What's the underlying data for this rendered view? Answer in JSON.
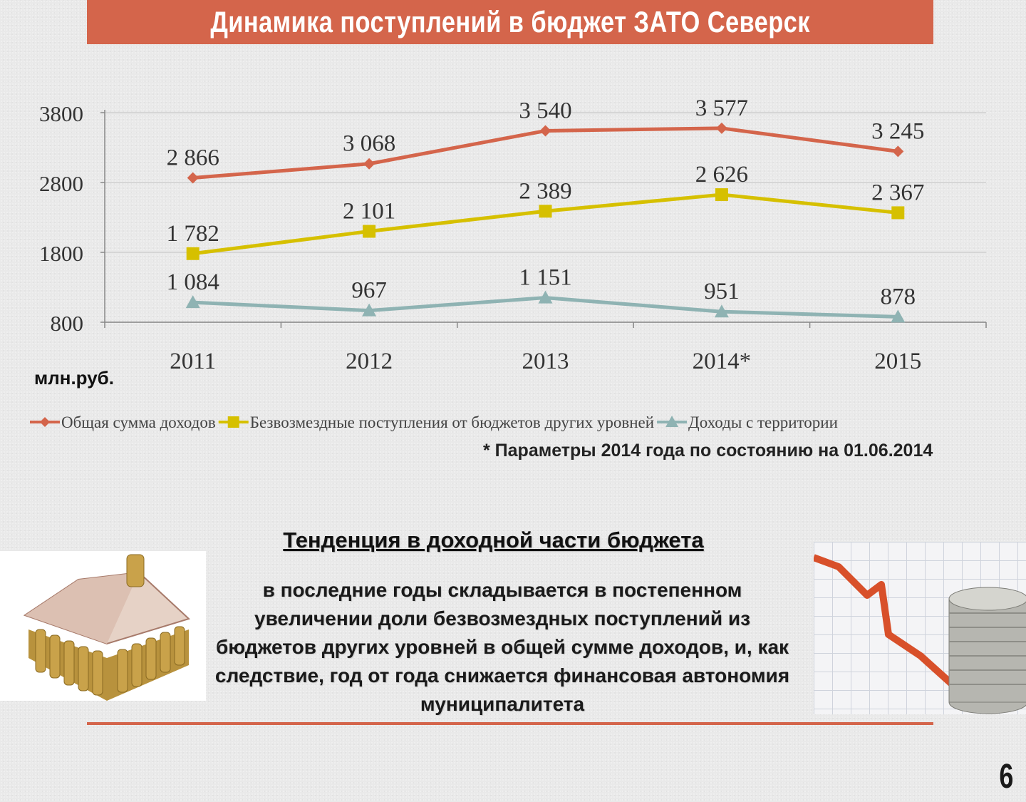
{
  "slide": {
    "title": "Динамика поступлений в бюджет ЗАТО Северск",
    "unit_label": "млн.руб.",
    "footnote": "* Параметры 2014 года по состоянию на 01.06.2014",
    "page_number": "6"
  },
  "trend": {
    "heading": "Тенденция в доходной части бюджета",
    "text": "в последние годы складывается в постепенном увеличении доли безвозмездных поступлений из бюджетов других уровней в общей сумме доходов, и, как следствие, год от года снижается финансовая автономия муниципалитета"
  },
  "chart_data": {
    "type": "line",
    "categories": [
      "2011",
      "2012",
      "2013",
      "2014*",
      "2015"
    ],
    "ylim": [
      800,
      3800
    ],
    "yticks": [
      800,
      1800,
      2800,
      3800
    ],
    "grid": true,
    "legend_position": "bottom",
    "series": [
      {
        "name": "Общая сумма доходов",
        "values": [
          2866,
          3068,
          3540,
          3577,
          3245
        ],
        "labels": [
          "2 866",
          "3 068",
          "3 540",
          "3 577",
          "3 245"
        ],
        "color": "#d4654b",
        "marker": "diamond"
      },
      {
        "name": "Безвозмездные поступления от бюджетов других уровней",
        "values": [
          1782,
          2101,
          2389,
          2626,
          2367
        ],
        "labels": [
          "1 782",
          "2 101",
          "2 389",
          "2 626",
          "2 367"
        ],
        "color": "#d6c000",
        "marker": "square"
      },
      {
        "name": "Доходы с территории",
        "values": [
          1084,
          967,
          1151,
          951,
          878
        ],
        "labels": [
          "1 084",
          "967",
          "1 151",
          "951",
          "878"
        ],
        "color": "#8fb3b3",
        "marker": "triangle"
      }
    ]
  }
}
